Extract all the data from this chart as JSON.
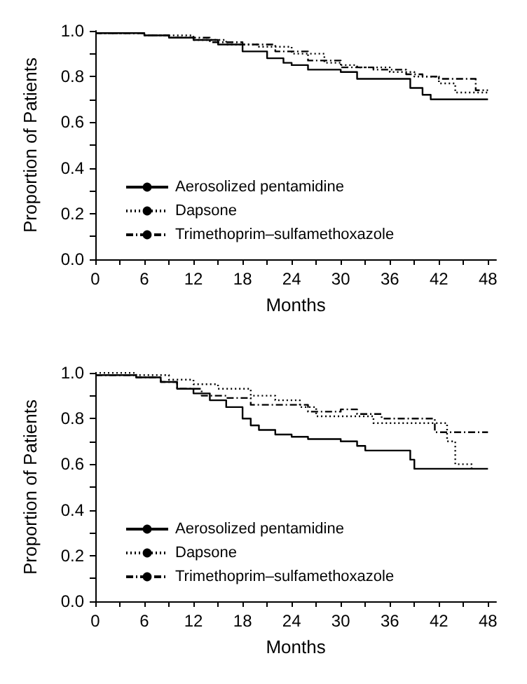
{
  "chart_data": [
    {
      "type": "step",
      "xlabel": "Months",
      "ylabel": "Proportion of Patients",
      "xlim": [
        0,
        49
      ],
      "ylim": [
        0,
        1
      ],
      "xticks": [
        0,
        {
          "value": 3,
          "label": null
        },
        6,
        {
          "value": 9,
          "label": null
        },
        12,
        {
          "value": 15,
          "label": null
        },
        18,
        {
          "value": 21,
          "label": null
        },
        24,
        {
          "value": 27,
          "label": null
        },
        30,
        {
          "value": 33,
          "label": null
        },
        36,
        {
          "value": 39,
          "label": null
        },
        42,
        {
          "value": 45,
          "label": null
        },
        48
      ],
      "yticks": [
        {
          "value": 0,
          "label": "0.0"
        },
        {
          "value": 0.1,
          "label": null
        },
        0.2,
        {
          "value": 0.3,
          "label": null
        },
        0.4,
        {
          "value": 0.5,
          "label": null
        },
        0.6,
        {
          "value": 0.7,
          "label": null
        },
        0.8,
        {
          "value": 0.9,
          "label": null
        },
        {
          "value": 1,
          "label": "1.0"
        }
      ],
      "grid": false,
      "legend": "bottom left",
      "marker": "none",
      "series": [
        {
          "name": "Aerosolized pentamidine",
          "color": "#000000",
          "line_style": "solid",
          "x": [
            0,
            6,
            9,
            12,
            15,
            18,
            21,
            23,
            24,
            26,
            30,
            32,
            38,
            38.5,
            40,
            41,
            48
          ],
          "values": [
            0.99,
            0.98,
            0.97,
            0.96,
            0.94,
            0.91,
            0.88,
            0.86,
            0.85,
            0.83,
            0.82,
            0.79,
            0.79,
            0.75,
            0.72,
            0.7,
            0.7
          ]
        },
        {
          "name": "Dapsone",
          "color": "#000000",
          "line_style": "dotted",
          "x": [
            0,
            6,
            10,
            12,
            16,
            20,
            24,
            28,
            30,
            32,
            36,
            39,
            42,
            44,
            48
          ],
          "values": [
            0.99,
            0.98,
            0.98,
            0.96,
            0.94,
            0.93,
            0.9,
            0.86,
            0.85,
            0.84,
            0.82,
            0.8,
            0.77,
            0.73,
            0.73
          ]
        },
        {
          "name": "Trimethoprim–sulfamethoxazole",
          "color": "#000000",
          "line_style": "dashed",
          "x": [
            0,
            6,
            9,
            14,
            18,
            22,
            26,
            30,
            34,
            38,
            40,
            42,
            46,
            46.5,
            48
          ],
          "values": [
            0.99,
            0.98,
            0.97,
            0.95,
            0.94,
            0.91,
            0.87,
            0.84,
            0.83,
            0.81,
            0.8,
            0.79,
            0.79,
            0.74,
            0.74
          ]
        }
      ]
    },
    {
      "type": "step",
      "xlabel": "Months",
      "ylabel": "Proportion of Patients",
      "xlim": [
        0,
        49
      ],
      "ylim": [
        0,
        1
      ],
      "xticks": [
        0,
        {
          "value": 3,
          "label": null
        },
        6,
        {
          "value": 9,
          "label": null
        },
        12,
        {
          "value": 15,
          "label": null
        },
        18,
        {
          "value": 21,
          "label": null
        },
        24,
        {
          "value": 27,
          "label": null
        },
        30,
        {
          "value": 33,
          "label": null
        },
        36,
        {
          "value": 39,
          "label": null
        },
        42,
        {
          "value": 45,
          "label": null
        },
        48
      ],
      "yticks": [
        {
          "value": 0,
          "label": "0.0"
        },
        {
          "value": 0.1,
          "label": null
        },
        0.2,
        {
          "value": 0.3,
          "label": null
        },
        0.4,
        {
          "value": 0.5,
          "label": null
        },
        0.6,
        {
          "value": 0.7,
          "label": null
        },
        0.8,
        {
          "value": 0.9,
          "label": null
        },
        {
          "value": 1,
          "label": "1.0"
        }
      ],
      "grid": false,
      "legend": "bottom left",
      "marker": "none",
      "series": [
        {
          "name": "Aerosolized pentamidine",
          "color": "#000000",
          "line_style": "solid",
          "x": [
            0,
            5,
            8,
            10,
            12,
            14,
            16,
            18,
            19,
            20,
            22,
            24,
            26,
            30,
            32,
            33,
            38,
            38.5,
            39,
            48
          ],
          "values": [
            0.99,
            0.98,
            0.96,
            0.93,
            0.91,
            0.88,
            0.85,
            0.8,
            0.77,
            0.75,
            0.73,
            0.72,
            0.71,
            0.7,
            0.68,
            0.66,
            0.66,
            0.62,
            0.58,
            0.58
          ]
        },
        {
          "name": "Dapsone",
          "color": "#000000",
          "line_style": "dotted",
          "x": [
            0,
            5,
            9,
            12,
            15,
            19,
            22,
            25,
            27,
            30,
            34,
            38,
            43,
            44,
            46
          ],
          "values": [
            1,
            0.99,
            0.97,
            0.95,
            0.93,
            0.9,
            0.88,
            0.85,
            0.81,
            0.81,
            0.78,
            0.78,
            0.7,
            0.6,
            0.58
          ]
        },
        {
          "name": "Trimethoprim–sulfamethoxazole",
          "color": "#000000",
          "line_style": "dashed",
          "x": [
            0,
            5,
            8,
            10,
            13,
            16,
            19,
            24,
            26,
            30,
            32,
            35,
            41,
            41.5,
            48
          ],
          "values": [
            0.99,
            0.98,
            0.96,
            0.93,
            0.9,
            0.89,
            0.86,
            0.86,
            0.83,
            0.84,
            0.82,
            0.8,
            0.8,
            0.74,
            0.74
          ]
        }
      ]
    }
  ]
}
